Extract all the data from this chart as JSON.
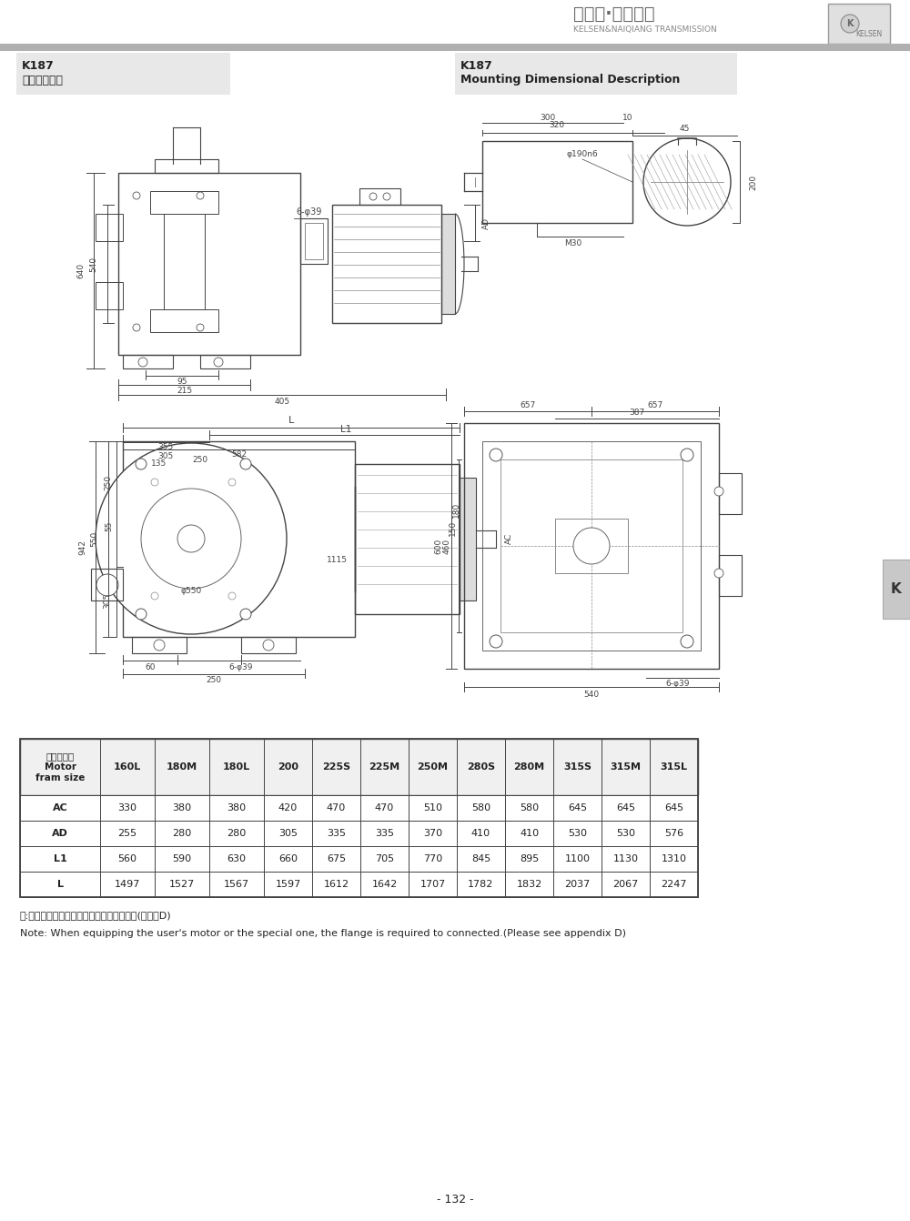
{
  "company_name": "凯尔森·耐强传动",
  "company_en": "KELSEN&NAIQIANG TRANSMISSION",
  "company_tag": "KELSEN",
  "left_title_line1": "K187",
  "left_title_line2": "安装结构尺寸",
  "right_title_line1": "K187",
  "right_title_line2": "Mounting Dimensional Description",
  "table_headers": [
    "电机机座号\nMotor\nfram size",
    "160L",
    "180M",
    "180L",
    "200",
    "225S",
    "225M",
    "250M",
    "280S",
    "280M",
    "315S",
    "315M",
    "315L"
  ],
  "table_rows": [
    [
      "AC",
      "330",
      "380",
      "380",
      "420",
      "470",
      "470",
      "510",
      "580",
      "580",
      "645",
      "645",
      "645"
    ],
    [
      "AD",
      "255",
      "280",
      "280",
      "305",
      "335",
      "335",
      "370",
      "410",
      "410",
      "530",
      "530",
      "576"
    ],
    [
      "L1",
      "560",
      "590",
      "630",
      "660",
      "675",
      "705",
      "770",
      "845",
      "895",
      "1100",
      "1130",
      "1310"
    ],
    [
      "L",
      "1497",
      "1527",
      "1567",
      "1597",
      "1612",
      "1642",
      "1707",
      "1782",
      "1832",
      "2037",
      "2067",
      "2247"
    ]
  ],
  "note_cn": "注:电机需方配或配特殊电机时需加联接法兰(见附录D)",
  "note_en": "Note: When equipping the user's motor or the special one, the flange is required to connected.(Please see appendix D)",
  "page_number": "- 132 -",
  "tab_label": "K",
  "bg_color": "#ffffff",
  "line_color": "#444444",
  "dim_color": "#444444",
  "table_border": "#444444",
  "gray_bar_color": "#b0b0b0",
  "header_bg": "#e8e8e8",
  "tab_color": "#c8c8c8"
}
